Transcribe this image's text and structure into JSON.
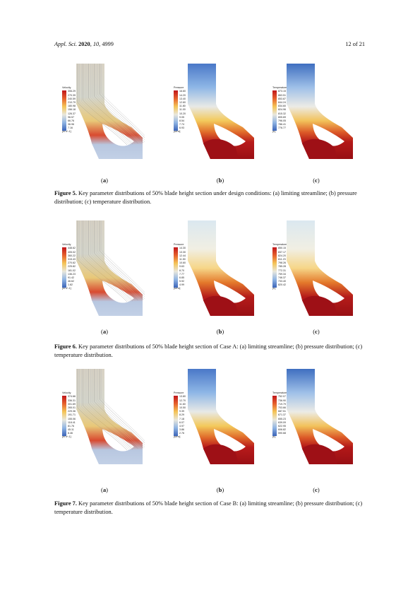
{
  "header": {
    "journal": "Appl. Sci.",
    "year": "2020",
    "volume": "10",
    "article": "4999",
    "page": "12 of 21"
  },
  "sublabels": {
    "a": "a",
    "b": "b",
    "c": "c"
  },
  "figures": [
    {
      "caption_label": "Figure 5.",
      "caption_text": "Key parameter distributions of 50% blade height section under design conditions: (a) limiting streamline; (b) pressure distribution; (c) temperature distribution.",
      "velocity": {
        "title": "Velocity",
        "unit": "[m s^-1]",
        "values": [
          "306.29",
          "270.39",
          "240.59",
          "210.79",
          "180.98",
          "156.18",
          "126.37",
          "96.57",
          "66.76",
          "36.96",
          "7.16"
        ]
      },
      "pressure": {
        "title": "Pressure",
        "unit": "[MPa]",
        "values": [
          "16.60",
          "14.20",
          "13.40",
          "12.60",
          "11.80",
          "11.00",
          "10.20",
          "9.05",
          "8.54",
          "7.74",
          "6.93"
        ]
      },
      "temperature": {
        "title": "Temperature",
        "unit": "[K]",
        "values": [
          "873.15",
          "863.51",
          "853.87",
          "844.24",
          "834.60",
          "824.96",
          "815.32",
          "805.69",
          "796.05",
          "786.41",
          "776.77"
        ]
      }
    },
    {
      "caption_label": "Figure 6.",
      "caption_text": "Key parameter distributions of 50% blade height section of Case A: (a) limiting streamline; (b) pressure distribution; (c) temperature distribution.",
      "velocity": {
        "title": "Velocity",
        "unit": "[m s^-1]",
        "values": [
          "448.62",
          "405.02",
          "360.22",
          "315.43",
          "270.62",
          "225.82",
          "181.02",
          "136.23",
          "91.42",
          "46.62",
          "1.82"
        ]
      },
      "pressure": {
        "title": "Pressure",
        "unit": "[MPa]",
        "values": [
          "14.30",
          "13.30",
          "12.44",
          "11.50",
          "10.60",
          "9.63",
          "8.70",
          "7.77",
          "6.85",
          "5.92",
          "4.99"
        ]
      },
      "temperature": {
        "title": "Temperature",
        "unit": "[K]",
        "values": [
          "850.15",
          "837.17",
          "824.20",
          "811.23",
          "798.26",
          "785.28",
          "772.31",
          "759.34",
          "746.37",
          "733.40",
          "820.42"
        ]
      }
    },
    {
      "caption_label": "Figure 7.",
      "caption_text": "Key parameter distributions of 50% blade height section of Case B: (a) limiting streamline; (b) pressure distribution; (c) temperature distribution.",
      "velocity": {
        "title": "Velocity",
        "unit": "[m s^-1]",
        "values": [
          "374.66",
          "336.31",
          "301.69",
          "265.01",
          "229.36",
          "191.71",
          "155.06",
          "118.41",
          "81.76",
          "45.11",
          "8.46"
        ]
      },
      "pressure": {
        "title": "Pressure",
        "unit": "[MPa]",
        "values": [
          "13.80",
          "12.70",
          "11.60",
          "10.50",
          "9.39",
          "8.29",
          "7.18",
          "6.07",
          "4.97",
          "3.86",
          "2.76"
        ]
      },
      "temperature": {
        "title": "Temperature",
        "unit": "[K]",
        "values": [
          "752.07",
          "736.90",
          "719.79",
          "703.66",
          "687.51",
          "671.37",
          "655.23",
          "639.09",
          "622.95",
          "606.82",
          "590.68"
        ]
      }
    }
  ]
}
